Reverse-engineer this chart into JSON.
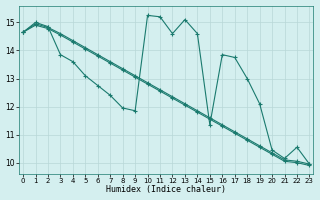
{
  "xlabel": "Humidex (Indice chaleur)",
  "bg_color": "#d4efef",
  "line_color": "#1a7a6e",
  "grid_color": "#b8d8d8",
  "x_ticks": [
    0,
    1,
    2,
    3,
    4,
    5,
    6,
    7,
    8,
    9,
    10,
    11,
    12,
    13,
    14,
    15,
    16,
    17,
    18,
    19,
    20,
    21,
    22,
    23
  ],
  "y_ticks": [
    10,
    11,
    12,
    13,
    14,
    15
  ],
  "ylim": [
    9.6,
    15.6
  ],
  "xlim": [
    -0.3,
    23.3
  ],
  "line1_y": [
    14.65,
    15.0,
    14.85,
    13.85,
    13.6,
    13.1,
    12.75,
    12.4,
    11.95,
    11.85,
    15.25,
    15.2,
    14.6,
    15.1,
    14.6,
    11.35,
    13.85,
    13.75,
    13.0,
    12.1,
    10.45,
    10.15,
    10.55,
    9.95
  ],
  "line2_y": [
    14.65,
    14.95,
    14.82,
    14.6,
    14.35,
    14.1,
    13.85,
    13.6,
    13.35,
    13.1,
    12.85,
    12.6,
    12.35,
    12.1,
    11.85,
    11.6,
    11.35,
    11.1,
    10.85,
    10.6,
    10.35,
    10.1,
    10.05,
    9.95
  ],
  "line3_y": [
    14.65,
    14.9,
    14.78,
    14.55,
    14.3,
    14.05,
    13.8,
    13.55,
    13.3,
    13.05,
    12.8,
    12.55,
    12.3,
    12.05,
    11.8,
    11.55,
    11.3,
    11.05,
    10.8,
    10.55,
    10.3,
    10.05,
    10.0,
    9.9
  ]
}
